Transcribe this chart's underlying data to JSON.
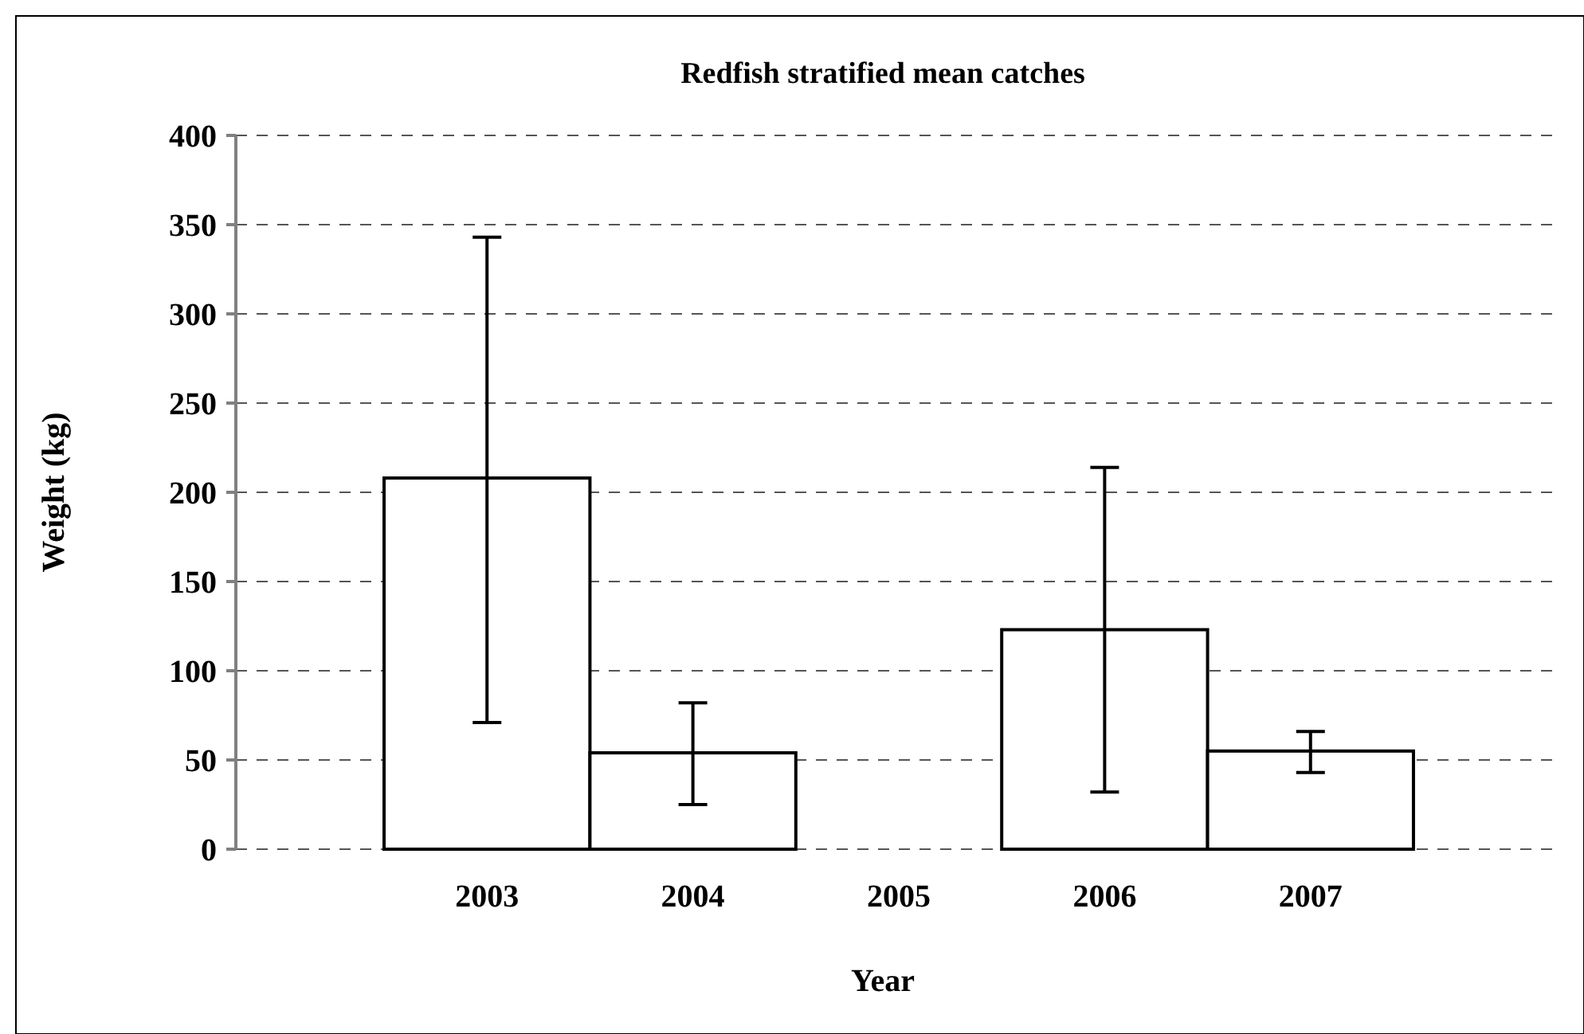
{
  "chart_data": {
    "type": "bar",
    "title": "Redfish stratified mean catches",
    "xlabel": "Year",
    "ylabel": "Weight (kg)",
    "categories": [
      "2003",
      "2004",
      "2005",
      "2006",
      "2007"
    ],
    "values": [
      208,
      54,
      null,
      123,
      55
    ],
    "errors": [
      [
        71,
        343
      ],
      [
        25,
        82
      ],
      null,
      [
        32,
        214
      ],
      [
        43,
        66
      ]
    ],
    "color": "#ffffff",
    "ylim": [
      0,
      400
    ],
    "yticks": [
      0,
      50,
      100,
      150,
      200,
      250,
      300,
      350,
      400
    ],
    "grid": "y"
  }
}
